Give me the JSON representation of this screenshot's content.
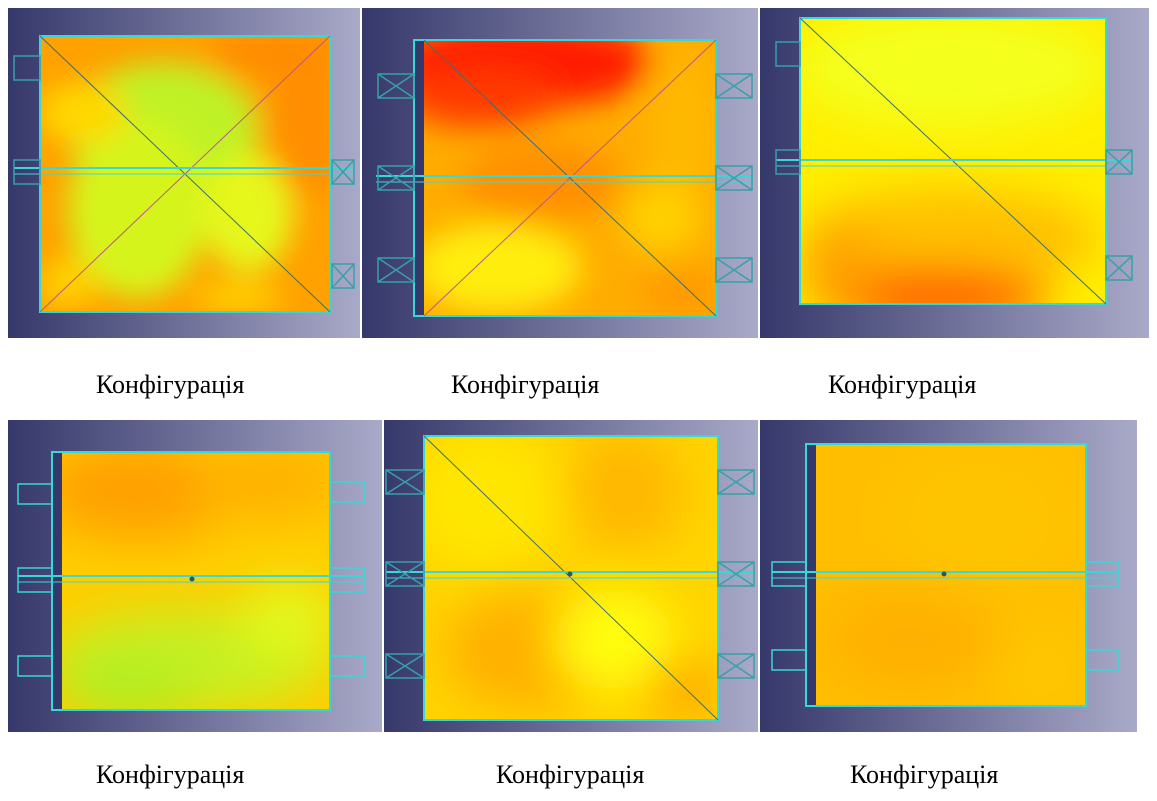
{
  "figures": [
    {
      "caption": "Конфігурація",
      "diagonals": 2,
      "ports": 3,
      "bottom_stripe": "none"
    },
    {
      "caption": "Конфігурація",
      "diagonals": 2,
      "ports": 3,
      "bottom_stripe": "none"
    },
    {
      "caption": "Конфігурація",
      "diagonals": 1,
      "ports": 3,
      "bottom_stripe": "none"
    },
    {
      "caption": "Конфігурація",
      "diagonals": 0,
      "ports": 3,
      "bottom_stripe": "none"
    },
    {
      "caption": "Конфігурація",
      "diagonals": 1,
      "ports": 3,
      "bottom_stripe": "none"
    },
    {
      "caption": "Конфігурація",
      "diagonals": 0,
      "ports": 3,
      "bottom_stripe": "none"
    }
  ],
  "colors": {
    "frame": "#38d8d8",
    "background_left": "#35386a",
    "background_right": "#a9a9c8",
    "heat_red": "#ff2a00",
    "heat_orange": "#ff9a00",
    "heat_yellow": "#ffff10",
    "heat_green": "#b8f020"
  }
}
